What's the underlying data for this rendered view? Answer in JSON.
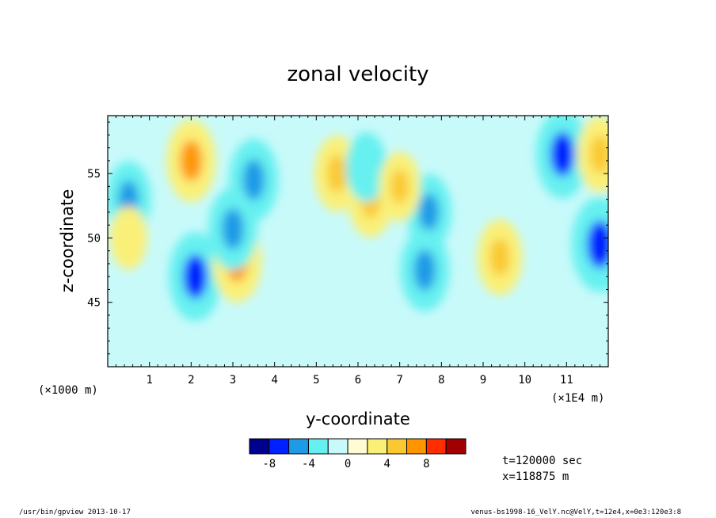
{
  "chart_data": {
    "type": "heatmap",
    "title": "zonal velocity",
    "xlabel": "y-coordinate",
    "ylabel": "z-coordinate",
    "x_unit_note": "(×1E4 m)",
    "y_unit_note": "(×1000 m)",
    "xlim": [
      0,
      12
    ],
    "ylim": [
      40,
      59.5
    ],
    "x_ticks": [
      "1",
      "2",
      "3",
      "4",
      "5",
      "6",
      "7",
      "8",
      "9",
      "10",
      "11"
    ],
    "y_ticks": [
      "45",
      "50",
      "55"
    ],
    "colorbar": {
      "levels": [
        -10,
        -8,
        -6,
        -4,
        -2,
        0,
        2,
        4,
        6,
        8,
        10
      ],
      "colors": [
        "#00008f",
        "#0021ff",
        "#1f9ae6",
        "#66f0f0",
        "#c8fafa",
        "#fffbd2",
        "#faf078",
        "#fac932",
        "#ff9600",
        "#ff2d00",
        "#a00000"
      ],
      "tick_labels": [
        "-8",
        "-4",
        "0",
        "4",
        "8"
      ]
    },
    "features": [
      {
        "y": 3.5,
        "z": 54.5,
        "value": -6
      },
      {
        "y": 2.0,
        "z": 56.0,
        "value": 6
      },
      {
        "y": 2.1,
        "z": 47.0,
        "value": -7
      },
      {
        "y": 3.1,
        "z": 48.2,
        "value": 6
      },
      {
        "y": 3.0,
        "z": 50.7,
        "value": -6
      },
      {
        "y": 0.5,
        "z": 53.0,
        "value": -5
      },
      {
        "y": 5.5,
        "z": 55.0,
        "value": 5
      },
      {
        "y": 6.3,
        "z": 53.0,
        "value": 5
      },
      {
        "y": 6.2,
        "z": 55.5,
        "value": -4
      },
      {
        "y": 7.7,
        "z": 52.0,
        "value": -5
      },
      {
        "y": 7.6,
        "z": 47.5,
        "value": -6
      },
      {
        "y": 9.4,
        "z": 48.5,
        "value": 5
      },
      {
        "y": 10.9,
        "z": 56.5,
        "value": -7
      },
      {
        "y": 11.8,
        "z": 49.5,
        "value": -8
      },
      {
        "y": 11.8,
        "z": 56.5,
        "value": 5
      },
      {
        "y": 0.5,
        "z": 50.0,
        "value": 3
      },
      {
        "y": 7.0,
        "z": 54.0,
        "value": 4
      }
    ]
  },
  "info": {
    "time": "t=120000 sec",
    "x_pos": "x=118875 m"
  },
  "footer": {
    "left": "/usr/bin/gpview  2013-10-17",
    "right": "venus-bs1998-16_VelY.nc@VelY,t=12e4,x=0e3:120e3:8"
  }
}
